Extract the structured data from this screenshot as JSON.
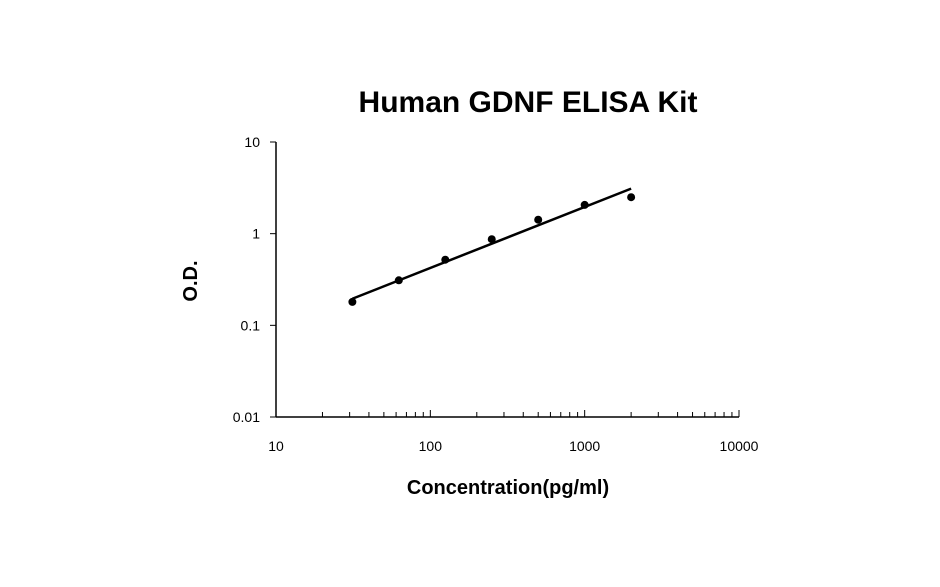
{
  "chart_data": {
    "type": "scatter",
    "title": "Human GDNF ELISA Kit",
    "xlabel": "Concentration(pg/ml)",
    "ylabel": "O.D.",
    "x_scale": "log",
    "y_scale": "log",
    "xlim": [
      10,
      10000
    ],
    "ylim": [
      0.01,
      10
    ],
    "x_ticks": [
      "10",
      "100",
      "1000",
      "10000"
    ],
    "y_ticks": [
      "0.01",
      "0.1",
      "1",
      "10"
    ],
    "grid": false,
    "legend": "none",
    "marker_color": "#000000",
    "series": [
      {
        "x": [
          31.25,
          62.5,
          125,
          250,
          500,
          1000,
          2000
        ],
        "y": [
          0.18,
          0.31,
          0.52,
          0.87,
          1.42,
          2.06,
          2.5
        ]
      }
    ],
    "fit_line": {
      "x": [
        31.25,
        2000
      ],
      "y": [
        0.195,
        3.1
      ]
    }
  }
}
